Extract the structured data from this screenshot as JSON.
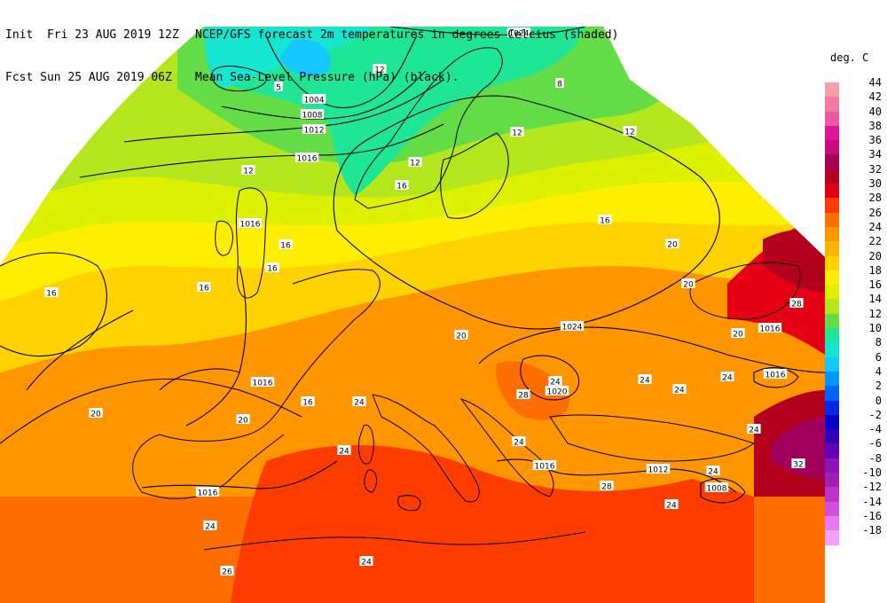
{
  "header": {
    "line1_left": "Init  Fri 23 AUG 2019 12Z",
    "line1_right": "NCEP/GFS forecast 2m temperatures in degrees Celcius (shaded)",
    "line2_left": "Fcst Sun 25 AUG 2019 06Z",
    "line2_right": "Mean Sea-Level Pressure (hPa) (black)."
  },
  "legend": {
    "title": "deg. C",
    "entries": [
      {
        "label": "44",
        "color": "#f5a0a8"
      },
      {
        "label": "42",
        "color": "#f07ca0"
      },
      {
        "label": "40",
        "color": "#ec5a9e"
      },
      {
        "label": "38",
        "color": "#e2159a"
      },
      {
        "label": "36",
        "color": "#c80a7c"
      },
      {
        "label": "34",
        "color": "#a0005a"
      },
      {
        "label": "32",
        "color": "#b4001e"
      },
      {
        "label": "30",
        "color": "#e60014"
      },
      {
        "label": "28",
        "color": "#ff3c00"
      },
      {
        "label": "26",
        "color": "#ff6e00"
      },
      {
        "label": "24",
        "color": "#ff9600"
      },
      {
        "label": "22",
        "color": "#ffb400"
      },
      {
        "label": "20",
        "color": "#ffd200"
      },
      {
        "label": "18",
        "color": "#ffee00"
      },
      {
        "label": "16",
        "color": "#dcf000"
      },
      {
        "label": "14",
        "color": "#b4e61e"
      },
      {
        "label": "12",
        "color": "#64dc46"
      },
      {
        "label": "10",
        "color": "#1ee696"
      },
      {
        "label": "8",
        "color": "#14e6d2"
      },
      {
        "label": "6",
        "color": "#14c8ff"
      },
      {
        "label": "4",
        "color": "#0096ff"
      },
      {
        "label": "2",
        "color": "#0064ff"
      },
      {
        "label": "0",
        "color": "#0028e6"
      },
      {
        "label": "-2",
        "color": "#0000c8"
      },
      {
        "label": "-4",
        "color": "#3200b4"
      },
      {
        "label": "-6",
        "color": "#6400b4"
      },
      {
        "label": "-8",
        "color": "#8c14b4"
      },
      {
        "label": "-10",
        "color": "#a01eb4"
      },
      {
        "label": "-12",
        "color": "#be32c8"
      },
      {
        "label": "-14",
        "color": "#d250dc"
      },
      {
        "label": "-16",
        "color": "#e678f0"
      },
      {
        "label": "-18",
        "color": "#f5a0fa"
      }
    ]
  },
  "map": {
    "pressure_labels": [
      "1024",
      "1004",
      "1008",
      "1012",
      "1016",
      "1016",
      "1016",
      "1016",
      "1024",
      "1020",
      "1016",
      "1012",
      "1008",
      "1016",
      "1016"
    ],
    "temperature_labels": [
      "5",
      "12",
      "8",
      "12",
      "12",
      "12",
      "12",
      "16",
      "16",
      "16",
      "16",
      "16",
      "16",
      "16",
      "20",
      "20",
      "20",
      "20",
      "20",
      "24",
      "24",
      "24",
      "24",
      "24",
      "24",
      "24",
      "24",
      "26",
      "28",
      "32",
      "24",
      "20",
      "28",
      "24",
      "24",
      "24",
      "28"
    ]
  }
}
